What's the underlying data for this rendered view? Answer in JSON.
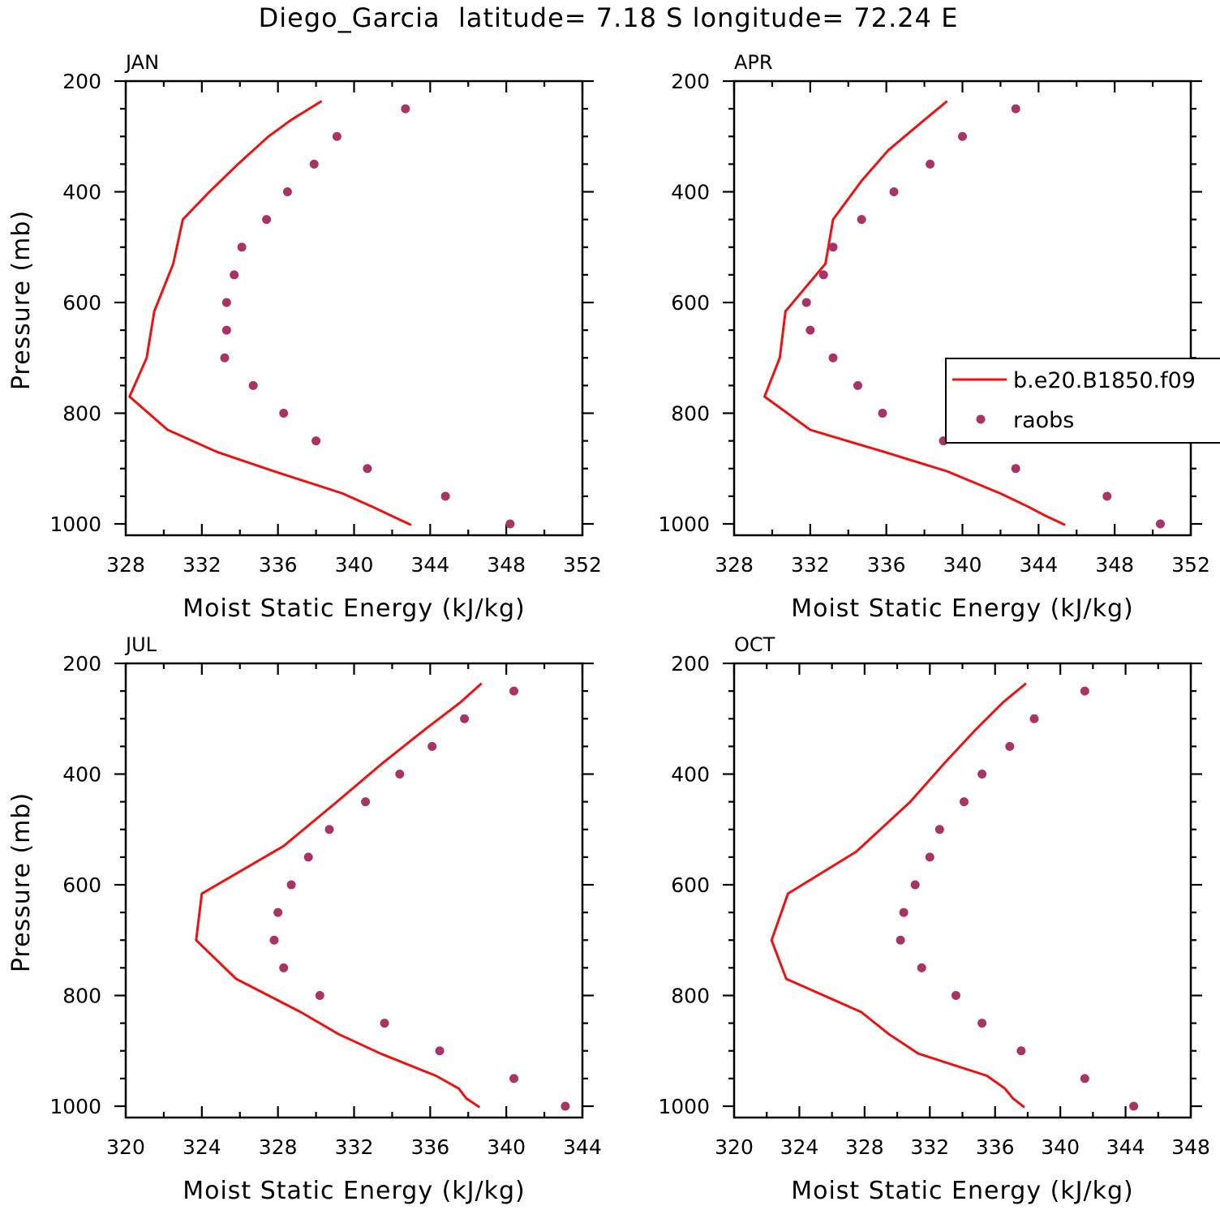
{
  "chart_data": {
    "type": "line",
    "title": "Diego_Garcia  latitude= 7.18 S longitude= 72.24 E",
    "colors": {
      "model": "#ee1111",
      "obs": "#aa3366",
      "axis": "#000000"
    },
    "legend": {
      "position": "right-middle",
      "panel": "APR",
      "model_label": "b.e20.B1850.f09",
      "obs_label": "raobs"
    },
    "panels": [
      {
        "title": "JAN",
        "xlabel": "Moist Static Energy (kJ/kg)",
        "ylabel": "Pressure (mb)",
        "xlim": [
          328,
          352
        ],
        "ylim": [
          1000,
          200
        ],
        "xticks": [
          328,
          332,
          336,
          340,
          344,
          348,
          352
        ],
        "yticks": [
          200,
          400,
          600,
          800,
          1000
        ],
        "model": {
          "pressure": [
            236,
            270,
            300,
            350,
            400,
            450,
            530,
            616,
            700,
            770,
            830,
            870,
            905,
            945,
            968,
            986,
            1002
          ],
          "mse": [
            338.3,
            336.7,
            335.5,
            333.9,
            332.4,
            331.0,
            330.5,
            329.5,
            329.1,
            328.2,
            330.2,
            332.8,
            335.8,
            339.4,
            340.9,
            342.0,
            343.0
          ]
        },
        "obs": {
          "pressure": [
            250,
            300,
            350,
            400,
            450,
            500,
            550,
            600,
            650,
            700,
            750,
            800,
            850,
            900,
            950,
            1000
          ],
          "mse": [
            342.7,
            339.1,
            337.9,
            336.5,
            335.4,
            334.1,
            333.7,
            333.3,
            333.3,
            333.2,
            334.7,
            336.3,
            338.0,
            340.7,
            344.8,
            348.2
          ]
        }
      },
      {
        "title": "APR",
        "xlabel": "Moist Static Energy (kJ/kg)",
        "ylabel": "",
        "xlim": [
          328,
          352
        ],
        "ylim": [
          1000,
          200
        ],
        "xticks": [
          328,
          332,
          336,
          340,
          344,
          348,
          352
        ],
        "yticks": [
          200,
          400,
          600,
          800,
          1000
        ],
        "model": {
          "pressure": [
            236,
            270,
            325,
            380,
            450,
            530,
            616,
            700,
            770,
            830,
            870,
            905,
            945,
            968,
            986,
            1002
          ],
          "mse": [
            339.2,
            338.0,
            336.1,
            334.7,
            333.2,
            332.8,
            330.7,
            330.4,
            329.6,
            332.0,
            335.9,
            339.2,
            342.0,
            343.4,
            344.4,
            345.4
          ]
        },
        "obs": {
          "pressure": [
            250,
            300,
            350,
            400,
            450,
            500,
            550,
            600,
            650,
            700,
            750,
            800,
            850,
            900,
            950,
            1000
          ],
          "mse": [
            342.8,
            340.0,
            338.3,
            336.4,
            334.7,
            333.2,
            332.7,
            331.8,
            332.0,
            333.2,
            334.5,
            335.8,
            339.0,
            342.8,
            347.6,
            350.4
          ]
        }
      },
      {
        "title": "JUL",
        "xlabel": "Moist Static Energy (kJ/kg)",
        "ylabel": "Pressure (mb)",
        "xlim": [
          320,
          344
        ],
        "ylim": [
          1000,
          200
        ],
        "xticks": [
          320,
          324,
          328,
          332,
          336,
          340,
          344
        ],
        "yticks": [
          200,
          400,
          600,
          800,
          1000
        ],
        "model": {
          "pressure": [
            236,
            270,
            320,
            380,
            450,
            530,
            616,
            700,
            770,
            830,
            870,
            905,
            945,
            968,
            986,
            1002
          ],
          "mse": [
            338.7,
            337.6,
            335.7,
            333.5,
            331.1,
            328.3,
            324.0,
            323.7,
            325.8,
            329.2,
            331.2,
            333.4,
            336.3,
            337.5,
            337.9,
            338.6
          ]
        },
        "obs": {
          "pressure": [
            250,
            300,
            350,
            400,
            450,
            500,
            550,
            600,
            650,
            700,
            750,
            800,
            850,
            900,
            950,
            1000
          ],
          "mse": [
            340.4,
            337.8,
            336.1,
            334.4,
            332.6,
            330.7,
            329.6,
            328.7,
            328.0,
            327.8,
            328.3,
            330.2,
            333.6,
            336.5,
            340.4,
            343.1
          ]
        }
      },
      {
        "title": "OCT",
        "xlabel": "Moist Static Energy (kJ/kg)",
        "ylabel": "",
        "xlim": [
          320,
          348
        ],
        "ylim": [
          1000,
          200
        ],
        "xticks": [
          320,
          324,
          328,
          332,
          336,
          340,
          344,
          348
        ],
        "yticks": [
          200,
          400,
          600,
          800,
          1000
        ],
        "model": {
          "pressure": [
            236,
            270,
            320,
            380,
            450,
            540,
            616,
            700,
            770,
            830,
            870,
            905,
            945,
            968,
            986,
            1002
          ],
          "mse": [
            337.9,
            336.5,
            334.8,
            332.9,
            330.8,
            327.5,
            323.3,
            322.3,
            323.2,
            327.8,
            329.5,
            331.3,
            335.5,
            336.6,
            337.1,
            337.8
          ]
        },
        "obs": {
          "pressure": [
            250,
            300,
            350,
            400,
            450,
            500,
            550,
            600,
            650,
            700,
            750,
            800,
            850,
            900,
            950,
            1000
          ],
          "mse": [
            341.5,
            338.4,
            336.9,
            335.2,
            334.1,
            332.6,
            332.0,
            331.1,
            330.4,
            330.2,
            331.5,
            333.6,
            335.2,
            337.6,
            341.5,
            344.5
          ]
        }
      }
    ]
  }
}
